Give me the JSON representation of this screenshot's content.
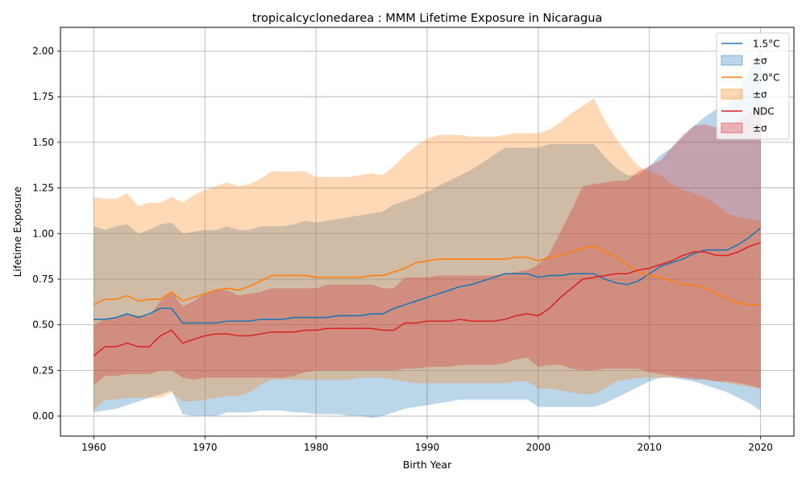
{
  "chart_data": {
    "type": "line",
    "title": "tropicalcyclonedarea : MMM Lifetime Exposure in Nicaragua",
    "xlabel": "Birth Year",
    "ylabel": "Lifetime Exposure",
    "xlim": [
      1957,
      2023
    ],
    "ylim": [
      -0.11,
      2.13
    ],
    "x_ticks": [
      1960,
      1970,
      1980,
      1990,
      2000,
      2010,
      2020
    ],
    "y_ticks": [
      0.0,
      0.25,
      0.5,
      0.75,
      1.0,
      1.25,
      1.5,
      1.75,
      2.0
    ],
    "x_tick_labels": [
      "1960",
      "1970",
      "1980",
      "1990",
      "2000",
      "2010",
      "2020"
    ],
    "y_tick_labels": [
      "0.00",
      "0.25",
      "0.50",
      "0.75",
      "1.00",
      "1.25",
      "1.50",
      "1.75",
      "2.00"
    ],
    "grid": true,
    "legend_position": "top-right",
    "x": [
      1960,
      1961,
      1962,
      1963,
      1964,
      1965,
      1966,
      1967,
      1968,
      1969,
      1970,
      1971,
      1972,
      1973,
      1974,
      1975,
      1976,
      1977,
      1978,
      1979,
      1980,
      1981,
      1982,
      1983,
      1984,
      1985,
      1986,
      1987,
      1988,
      1989,
      1990,
      1991,
      1992,
      1993,
      1994,
      1995,
      1996,
      1997,
      1998,
      1999,
      2000,
      2001,
      2002,
      2003,
      2004,
      2005,
      2006,
      2007,
      2008,
      2009,
      2010,
      2011,
      2012,
      2013,
      2014,
      2015,
      2016,
      2017,
      2018,
      2019,
      2020
    ],
    "series": [
      {
        "name": "1.5°C",
        "band_label": "±σ",
        "color": "#1f77b4",
        "fill_color": "#1f77b4",
        "fill_opacity": 0.3,
        "values": [
          0.53,
          0.53,
          0.54,
          0.56,
          0.54,
          0.56,
          0.59,
          0.59,
          0.51,
          0.51,
          0.51,
          0.51,
          0.52,
          0.52,
          0.52,
          0.53,
          0.53,
          0.53,
          0.54,
          0.54,
          0.54,
          0.54,
          0.55,
          0.55,
          0.55,
          0.56,
          0.56,
          0.59,
          0.61,
          0.63,
          0.65,
          0.67,
          0.69,
          0.71,
          0.72,
          0.74,
          0.76,
          0.78,
          0.78,
          0.78,
          0.76,
          0.77,
          0.77,
          0.78,
          0.78,
          0.78,
          0.75,
          0.73,
          0.72,
          0.74,
          0.78,
          0.82,
          0.84,
          0.86,
          0.89,
          0.91,
          0.91,
          0.91,
          0.94,
          0.98,
          1.03
        ],
        "lower": [
          0.02,
          0.03,
          0.04,
          0.06,
          0.08,
          0.1,
          0.12,
          0.14,
          0.01,
          0.0,
          0.0,
          0.0,
          0.02,
          0.02,
          0.02,
          0.03,
          0.03,
          0.03,
          0.02,
          0.02,
          0.01,
          0.01,
          0.01,
          0.0,
          0.0,
          -0.01,
          0.0,
          0.02,
          0.04,
          0.05,
          0.06,
          0.07,
          0.08,
          0.09,
          0.09,
          0.09,
          0.09,
          0.09,
          0.09,
          0.09,
          0.05,
          0.05,
          0.05,
          0.05,
          0.05,
          0.05,
          0.07,
          0.1,
          0.13,
          0.16,
          0.19,
          0.21,
          0.21,
          0.2,
          0.19,
          0.17,
          0.15,
          0.13,
          0.1,
          0.07,
          0.03
        ],
        "upper": [
          1.04,
          1.02,
          1.04,
          1.05,
          1.0,
          1.02,
          1.05,
          1.06,
          1.0,
          1.01,
          1.02,
          1.02,
          1.04,
          1.02,
          1.02,
          1.04,
          1.04,
          1.04,
          1.05,
          1.07,
          1.06,
          1.07,
          1.08,
          1.09,
          1.1,
          1.11,
          1.12,
          1.16,
          1.18,
          1.2,
          1.23,
          1.26,
          1.29,
          1.32,
          1.35,
          1.39,
          1.43,
          1.47,
          1.47,
          1.47,
          1.47,
          1.49,
          1.49,
          1.49,
          1.49,
          1.49,
          1.42,
          1.36,
          1.32,
          1.32,
          1.37,
          1.43,
          1.47,
          1.53,
          1.59,
          1.64,
          1.68,
          1.7,
          1.78,
          1.89,
          2.0
        ]
      },
      {
        "name": "2.0°C",
        "band_label": "±σ",
        "color": "#ff7f0e",
        "fill_color": "#ff7f0e",
        "fill_opacity": 0.3,
        "values": [
          0.61,
          0.64,
          0.64,
          0.66,
          0.63,
          0.64,
          0.64,
          0.68,
          0.63,
          0.65,
          0.67,
          0.69,
          0.7,
          0.69,
          0.71,
          0.74,
          0.77,
          0.77,
          0.77,
          0.77,
          0.76,
          0.76,
          0.76,
          0.76,
          0.76,
          0.77,
          0.77,
          0.79,
          0.81,
          0.84,
          0.85,
          0.86,
          0.86,
          0.86,
          0.86,
          0.86,
          0.86,
          0.86,
          0.87,
          0.87,
          0.85,
          0.87,
          0.88,
          0.9,
          0.92,
          0.93,
          0.9,
          0.87,
          0.83,
          0.79,
          0.77,
          0.76,
          0.74,
          0.72,
          0.72,
          0.7,
          0.67,
          0.64,
          0.62,
          0.61,
          0.61
        ],
        "lower": [
          0.03,
          0.09,
          0.09,
          0.1,
          0.1,
          0.1,
          0.1,
          0.13,
          0.08,
          0.08,
          0.09,
          0.1,
          0.11,
          0.11,
          0.13,
          0.17,
          0.2,
          0.2,
          0.2,
          0.2,
          0.2,
          0.2,
          0.2,
          0.2,
          0.21,
          0.21,
          0.21,
          0.2,
          0.19,
          0.18,
          0.18,
          0.18,
          0.18,
          0.18,
          0.18,
          0.18,
          0.18,
          0.18,
          0.19,
          0.19,
          0.15,
          0.15,
          0.14,
          0.13,
          0.12,
          0.12,
          0.15,
          0.19,
          0.2,
          0.21,
          0.21,
          0.21,
          0.21,
          0.21,
          0.21,
          0.2,
          0.19,
          0.18,
          0.17,
          0.16,
          0.15
        ],
        "upper": [
          1.2,
          1.19,
          1.19,
          1.22,
          1.15,
          1.17,
          1.17,
          1.2,
          1.17,
          1.21,
          1.24,
          1.26,
          1.28,
          1.26,
          1.27,
          1.3,
          1.34,
          1.34,
          1.34,
          1.34,
          1.31,
          1.31,
          1.31,
          1.31,
          1.32,
          1.33,
          1.32,
          1.37,
          1.43,
          1.48,
          1.52,
          1.54,
          1.54,
          1.54,
          1.53,
          1.53,
          1.53,
          1.54,
          1.55,
          1.55,
          1.55,
          1.57,
          1.61,
          1.66,
          1.7,
          1.74,
          1.62,
          1.52,
          1.44,
          1.37,
          1.34,
          1.32,
          1.27,
          1.24,
          1.22,
          1.2,
          1.16,
          1.11,
          1.09,
          1.08,
          1.07
        ]
      },
      {
        "name": "NDC",
        "band_label": "±σ",
        "color": "#d62728",
        "fill_color": "#d62728",
        "fill_opacity": 0.3,
        "values": [
          0.33,
          0.38,
          0.38,
          0.4,
          0.38,
          0.38,
          0.44,
          0.47,
          0.4,
          0.42,
          0.44,
          0.45,
          0.45,
          0.44,
          0.44,
          0.45,
          0.46,
          0.46,
          0.46,
          0.47,
          0.47,
          0.48,
          0.48,
          0.48,
          0.48,
          0.48,
          0.47,
          0.47,
          0.51,
          0.51,
          0.52,
          0.52,
          0.52,
          0.53,
          0.52,
          0.52,
          0.52,
          0.53,
          0.55,
          0.56,
          0.55,
          0.59,
          0.65,
          0.7,
          0.75,
          0.76,
          0.77,
          0.78,
          0.78,
          0.8,
          0.81,
          0.83,
          0.85,
          0.88,
          0.9,
          0.9,
          0.88,
          0.88,
          0.9,
          0.93,
          0.95
        ],
        "lower": [
          0.17,
          0.22,
          0.22,
          0.23,
          0.23,
          0.23,
          0.25,
          0.25,
          0.21,
          0.2,
          0.21,
          0.21,
          0.21,
          0.21,
          0.21,
          0.21,
          0.21,
          0.21,
          0.22,
          0.24,
          0.25,
          0.25,
          0.25,
          0.25,
          0.25,
          0.25,
          0.25,
          0.25,
          0.26,
          0.26,
          0.27,
          0.27,
          0.27,
          0.28,
          0.28,
          0.28,
          0.28,
          0.29,
          0.31,
          0.32,
          0.27,
          0.28,
          0.28,
          0.26,
          0.25,
          0.25,
          0.26,
          0.26,
          0.26,
          0.26,
          0.24,
          0.23,
          0.22,
          0.21,
          0.2,
          0.2,
          0.19,
          0.19,
          0.18,
          0.17,
          0.15
        ],
        "upper": [
          0.5,
          0.53,
          0.54,
          0.56,
          0.55,
          0.55,
          0.63,
          0.68,
          0.6,
          0.63,
          0.67,
          0.69,
          0.69,
          0.66,
          0.67,
          0.68,
          0.7,
          0.7,
          0.7,
          0.7,
          0.7,
          0.72,
          0.72,
          0.72,
          0.72,
          0.72,
          0.7,
          0.7,
          0.76,
          0.76,
          0.76,
          0.77,
          0.77,
          0.77,
          0.77,
          0.77,
          0.77,
          0.78,
          0.79,
          0.8,
          0.83,
          0.89,
          1.01,
          1.13,
          1.26,
          1.27,
          1.28,
          1.29,
          1.29,
          1.34,
          1.37,
          1.4,
          1.47,
          1.54,
          1.59,
          1.6,
          1.58,
          1.59,
          1.62,
          1.66,
          1.69
        ]
      }
    ]
  }
}
